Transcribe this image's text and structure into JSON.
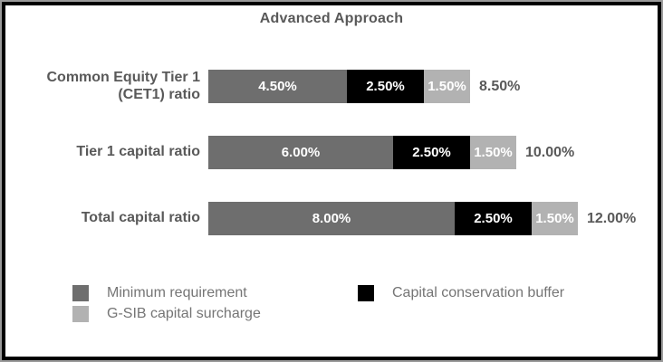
{
  "chart_data": {
    "type": "bar",
    "orientation": "horizontal",
    "stacked": true,
    "title": "Advanced Approach",
    "categories": [
      "Common Equity Tier 1 (CET1) ratio",
      "Tier 1 capital ratio",
      "Total capital ratio"
    ],
    "series": [
      {
        "name": "Minimum requirement",
        "color": "#6e6e6e",
        "values": [
          4.5,
          6.0,
          8.0
        ],
        "labels": [
          "4.50%",
          "6.00%",
          "8.00%"
        ]
      },
      {
        "name": "Capital conservation buffer",
        "color": "#000000",
        "values": [
          2.5,
          2.5,
          2.5
        ],
        "labels": [
          "2.50%",
          "2.50%",
          "2.50%"
        ]
      },
      {
        "name": "G-SIB capital surcharge",
        "color": "#b2b2b2",
        "values": [
          1.5,
          1.5,
          1.5
        ],
        "labels": [
          "1.50%",
          "1.50%",
          "1.50%"
        ]
      }
    ],
    "totals": [
      "8.50%",
      "10.00%",
      "12.00%"
    ],
    "xlim": [
      0,
      12
    ],
    "grid": false,
    "legend_position": "bottom",
    "value_label_color": "#ffffff"
  },
  "legend": {
    "items": [
      {
        "label": "Minimum requirement",
        "color": "#6e6e6e"
      },
      {
        "label": "Capital conservation buffer",
        "color": "#000000"
      },
      {
        "label": "G-SIB capital surcharge",
        "color": "#b2b2b2"
      }
    ]
  },
  "colors": {
    "frame_border": "#000000",
    "frame_outer_edge": "#9a9a9a",
    "title_text": "#595959",
    "category_text": "#595959",
    "total_text": "#595959",
    "segment_text": "#ffffff",
    "legend_text": "#757575",
    "background": "#ffffff"
  }
}
